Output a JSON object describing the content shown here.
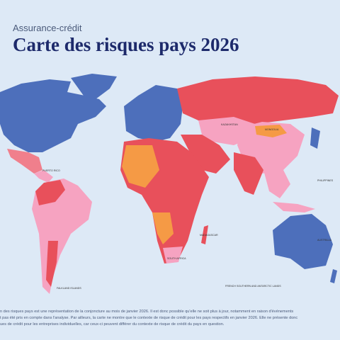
{
  "header": {
    "kicker": "Assurance-crédit",
    "title": "Carte des risques pays 2026"
  },
  "map": {
    "labels": [
      "KAZAKHSTAN",
      "MONGOLIA",
      "PHILIPPINES",
      "AUSTRALIA",
      "SOUTH AFRICA",
      "PUERTO RICO",
      "MADAGASCAR",
      "FRENCH SOUTHERN AND ANTARCTIC LANDS",
      "FALKLAND ISLANDS"
    ]
  },
  "footnote": {
    "lines": [
      "n des risques pays est une représentation de la conjoncture au mois de janvier 2026. Il est donc possible qu'elle ne soit plus à jour, notamment en raison d'événements",
      "t pas été pris en compte dans l'analyse. Par ailleurs, la carte ne montre que le contexte de risque de crédit pour les pays respectifs en janvier 2026. Elle ne présente donc",
      "ues de crédit pour les entreprises individuelles, car ceux-ci peuvent différer du contexte de risque de crédit du pays en question."
    ]
  }
}
